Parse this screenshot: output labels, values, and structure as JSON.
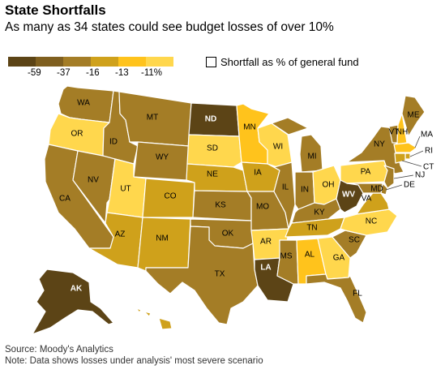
{
  "header": {
    "title": "State Shortfalls",
    "subtitle": "As many as 34 states could see budget losses of over 10%"
  },
  "legend": {
    "colors": [
      "#5c4416",
      "#7f5f1f",
      "#a47d26",
      "#cfa11b",
      "#ffc31c",
      "#ffd74d"
    ],
    "labels": [
      "-59",
      "-37",
      "-16",
      "-13",
      "-11%"
    ]
  },
  "toggle": {
    "label": "Shortfall as % of general fund",
    "checked": false
  },
  "colors": {
    "t1": "#5c4416",
    "t2": "#7f5f1f",
    "t3": "#a47d26",
    "t4": "#cfa11b",
    "t5": "#ffc31c",
    "t6": "#ffd74d"
  },
  "states": [
    {
      "code": "WA",
      "tier": "t3"
    },
    {
      "code": "OR",
      "tier": "t6"
    },
    {
      "code": "CA",
      "tier": "t3"
    },
    {
      "code": "NV",
      "tier": "t3"
    },
    {
      "code": "ID",
      "tier": "t3"
    },
    {
      "code": "MT",
      "tier": "t3"
    },
    {
      "code": "WY",
      "tier": "t3"
    },
    {
      "code": "UT",
      "tier": "t6"
    },
    {
      "code": "AZ",
      "tier": "t4"
    },
    {
      "code": "CO",
      "tier": "t4"
    },
    {
      "code": "NM",
      "tier": "t4"
    },
    {
      "code": "ND",
      "tier": "t1"
    },
    {
      "code": "SD",
      "tier": "t6"
    },
    {
      "code": "NE",
      "tier": "t4"
    },
    {
      "code": "KS",
      "tier": "t3"
    },
    {
      "code": "OK",
      "tier": "t3"
    },
    {
      "code": "TX",
      "tier": "t3"
    },
    {
      "code": "MN",
      "tier": "t5"
    },
    {
      "code": "IA",
      "tier": "t4"
    },
    {
      "code": "MO",
      "tier": "t3"
    },
    {
      "code": "AR",
      "tier": "t6"
    },
    {
      "code": "LA",
      "tier": "t1"
    },
    {
      "code": "WI",
      "tier": "t6"
    },
    {
      "code": "IL",
      "tier": "t3"
    },
    {
      "code": "MI",
      "tier": "t3"
    },
    {
      "code": "IN",
      "tier": "t3"
    },
    {
      "code": "OH",
      "tier": "t6"
    },
    {
      "code": "KY",
      "tier": "t3"
    },
    {
      "code": "TN",
      "tier": "t4"
    },
    {
      "code": "MS",
      "tier": "t3"
    },
    {
      "code": "AL",
      "tier": "t5"
    },
    {
      "code": "GA",
      "tier": "t6"
    },
    {
      "code": "FL",
      "tier": "t3"
    },
    {
      "code": "SC",
      "tier": "t3"
    },
    {
      "code": "NC",
      "tier": "t6"
    },
    {
      "code": "VA",
      "tier": "t4"
    },
    {
      "code": "WV",
      "tier": "t1"
    },
    {
      "code": "PA",
      "tier": "t6"
    },
    {
      "code": "NY",
      "tier": "t3"
    },
    {
      "code": "VT",
      "tier": "t3"
    },
    {
      "code": "NH",
      "tier": "t5"
    },
    {
      "code": "ME",
      "tier": "t3"
    },
    {
      "code": "MA",
      "tier": "t5"
    },
    {
      "code": "RI",
      "tier": "t4"
    },
    {
      "code": "CT",
      "tier": "t4"
    },
    {
      "code": "NJ",
      "tier": "t3"
    },
    {
      "code": "DE",
      "tier": "t3"
    },
    {
      "code": "MD",
      "tier": "t3"
    },
    {
      "code": "AK",
      "tier": "t1"
    },
    {
      "code": "HI",
      "tier": "t4"
    }
  ],
  "external_labels": [
    "MA",
    "RI",
    "CT",
    "NJ",
    "DE"
  ],
  "footer": {
    "source": "Source: Moody's Analytics",
    "note": "Note: Data shows losses under analysis' most severe scenario"
  }
}
